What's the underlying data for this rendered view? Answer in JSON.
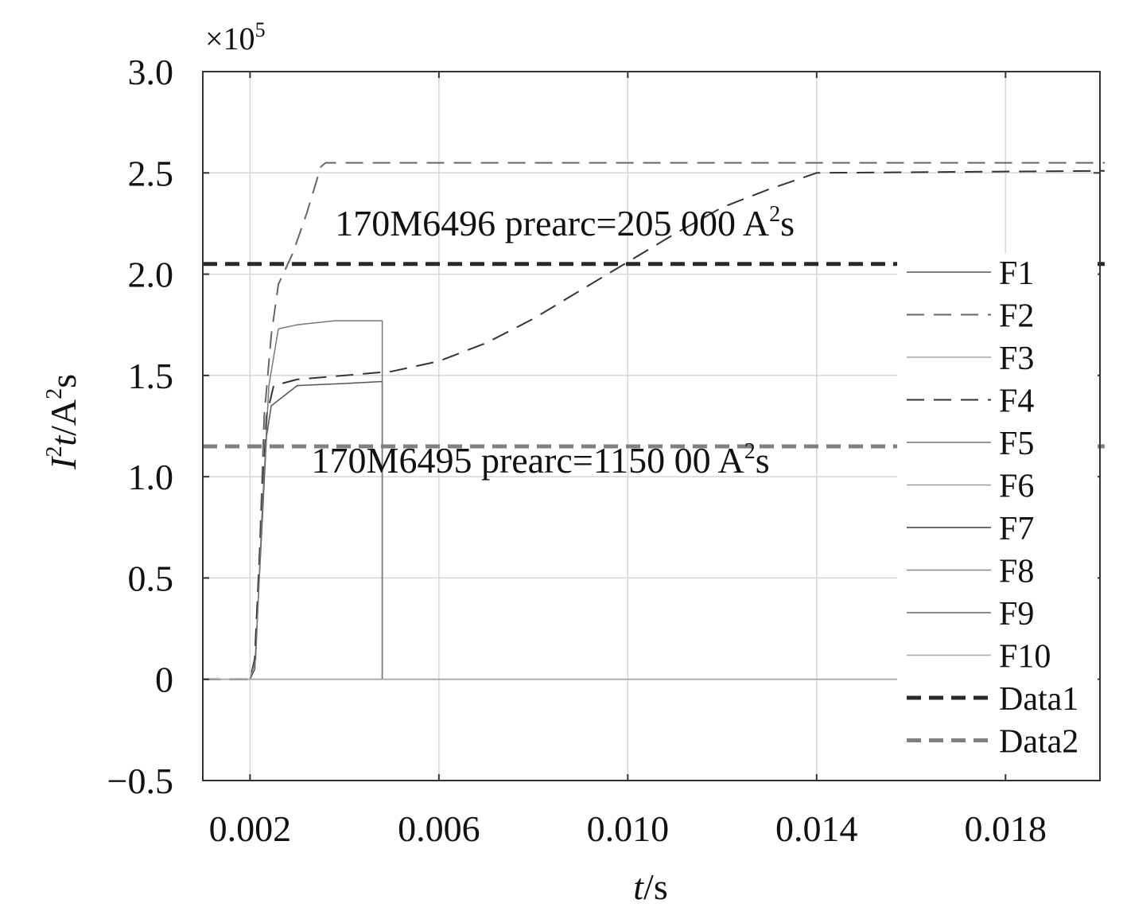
{
  "chart_data": {
    "type": "line",
    "x_tick_labels": [
      "0.002",
      "0.006",
      "0.010",
      "0.014",
      "0.018"
    ],
    "x_ticks": [
      0.002,
      0.006,
      0.01,
      0.014,
      0.018
    ],
    "y_tick_labels": [
      "3.0",
      "2.5",
      "2.0",
      "1.5",
      "1.0",
      "0.5",
      "0",
      "−0.5"
    ],
    "y_ticks": [
      3.0,
      2.5,
      2.0,
      1.5,
      1.0,
      0.5,
      0,
      -0.5
    ],
    "xlim": [
      0.001,
      0.02
    ],
    "ylim": [
      -0.5,
      3.0
    ],
    "y_multiplier": "×10",
    "y_multiplier_exp": "5",
    "ylabel": {
      "base": "I",
      "sup": "2",
      "var": "t",
      "unit": "/A",
      "unit_sup": "2",
      "unit_end": "s"
    },
    "xlabel": {
      "var": "t",
      "unit": "/s"
    },
    "grid": true,
    "legend_position": "right",
    "annotations": [
      {
        "text_before": "170M6496 prearc=205 000 A",
        "sup": "2",
        "text_after": "s",
        "x": 0.0038,
        "y": 2.19
      },
      {
        "text_before": "170M6495 prearc=1150 00 A",
        "sup": "2",
        "text_after": "s",
        "x": 0.0033,
        "y": 1.02
      }
    ],
    "series": [
      {
        "name": "F1",
        "color": "#555555",
        "dash": "solid",
        "width": 1.5,
        "points": [
          [
            0.001,
            0
          ],
          [
            0.002,
            0
          ],
          [
            0.0021,
            0.05
          ],
          [
            0.00222,
            0.6
          ],
          [
            0.00235,
            1.2
          ],
          [
            0.00245,
            1.35
          ],
          [
            0.003,
            1.45
          ],
          [
            0.004,
            1.46
          ],
          [
            0.0048,
            1.47
          ],
          [
            0.0048,
            0
          ],
          [
            0.0157,
            0
          ]
        ]
      },
      {
        "name": "F2",
        "color": "#666666",
        "dash": "22,12",
        "width": 2,
        "points": [
          [
            0.001,
            0
          ],
          [
            0.002,
            0
          ],
          [
            0.0021,
            0.1
          ],
          [
            0.0022,
            0.6
          ],
          [
            0.0023,
            1.3
          ],
          [
            0.00245,
            1.7
          ],
          [
            0.0026,
            1.95
          ],
          [
            0.0029,
            2.1
          ],
          [
            0.0032,
            2.3
          ],
          [
            0.0035,
            2.53
          ],
          [
            0.0036,
            2.55
          ],
          [
            0.0201,
            2.55
          ]
        ]
      },
      {
        "name": "F3",
        "color": "#bbbbbb",
        "dash": "solid",
        "width": 2,
        "points": [
          [
            0.001,
            0
          ],
          [
            0.0157,
            0
          ]
        ]
      },
      {
        "name": "F4",
        "color": "#333333",
        "dash": "22,12",
        "width": 2,
        "points": [
          [
            0.001,
            0
          ],
          [
            0.002,
            0
          ],
          [
            0.0021,
            0.1
          ],
          [
            0.00222,
            0.7
          ],
          [
            0.00235,
            1.3
          ],
          [
            0.0025,
            1.45
          ],
          [
            0.003,
            1.48
          ],
          [
            0.004,
            1.5
          ],
          [
            0.005,
            1.52
          ],
          [
            0.006,
            1.57
          ],
          [
            0.007,
            1.66
          ],
          [
            0.008,
            1.78
          ],
          [
            0.009,
            1.92
          ],
          [
            0.01,
            2.06
          ],
          [
            0.011,
            2.2
          ],
          [
            0.012,
            2.33
          ],
          [
            0.013,
            2.42
          ],
          [
            0.014,
            2.5
          ],
          [
            0.0201,
            2.51
          ]
        ]
      },
      {
        "name": "F5",
        "color": "#777777",
        "dash": "solid",
        "width": 1.5,
        "points": [
          [
            0.001,
            0
          ],
          [
            0.002,
            0
          ],
          [
            0.00212,
            0.1
          ],
          [
            0.00225,
            0.8
          ],
          [
            0.0024,
            1.45
          ],
          [
            0.0026,
            1.73
          ],
          [
            0.003,
            1.75
          ],
          [
            0.0038,
            1.77
          ],
          [
            0.0048,
            1.77
          ],
          [
            0.0048,
            0
          ]
        ]
      },
      {
        "name": "F6",
        "color": "#999999",
        "dash": "solid",
        "width": 1.5,
        "points": [
          [
            0.001,
            0
          ],
          [
            0.0157,
            0
          ]
        ]
      },
      {
        "name": "F7",
        "color": "#3a3a3a",
        "dash": "solid",
        "width": 1.5,
        "points": [
          [
            0.001,
            0
          ],
          [
            0.003,
            0
          ]
        ]
      },
      {
        "name": "F8",
        "color": "#888888",
        "dash": "solid",
        "width": 1.5,
        "points": [
          [
            0.001,
            0
          ],
          [
            0.0157,
            0
          ]
        ]
      },
      {
        "name": "F9",
        "color": "#666666",
        "dash": "solid",
        "width": 1.5,
        "points": [
          [
            0.001,
            0
          ],
          [
            0.0157,
            0
          ]
        ]
      },
      {
        "name": "F10",
        "color": "#aaaaaa",
        "dash": "solid",
        "width": 1.5,
        "points": [
          [
            0.001,
            0
          ],
          [
            0.0157,
            0
          ]
        ]
      },
      {
        "name": "Data1",
        "color": "#2a2a2a",
        "dash": "18,10",
        "width": 5,
        "points": [
          [
            0.001,
            2.05
          ],
          [
            0.0201,
            2.05
          ]
        ]
      },
      {
        "name": "Data2",
        "color": "#808080",
        "dash": "18,10",
        "width": 5,
        "points": [
          [
            0.001,
            1.15
          ],
          [
            0.0201,
            1.15
          ]
        ]
      }
    ]
  }
}
